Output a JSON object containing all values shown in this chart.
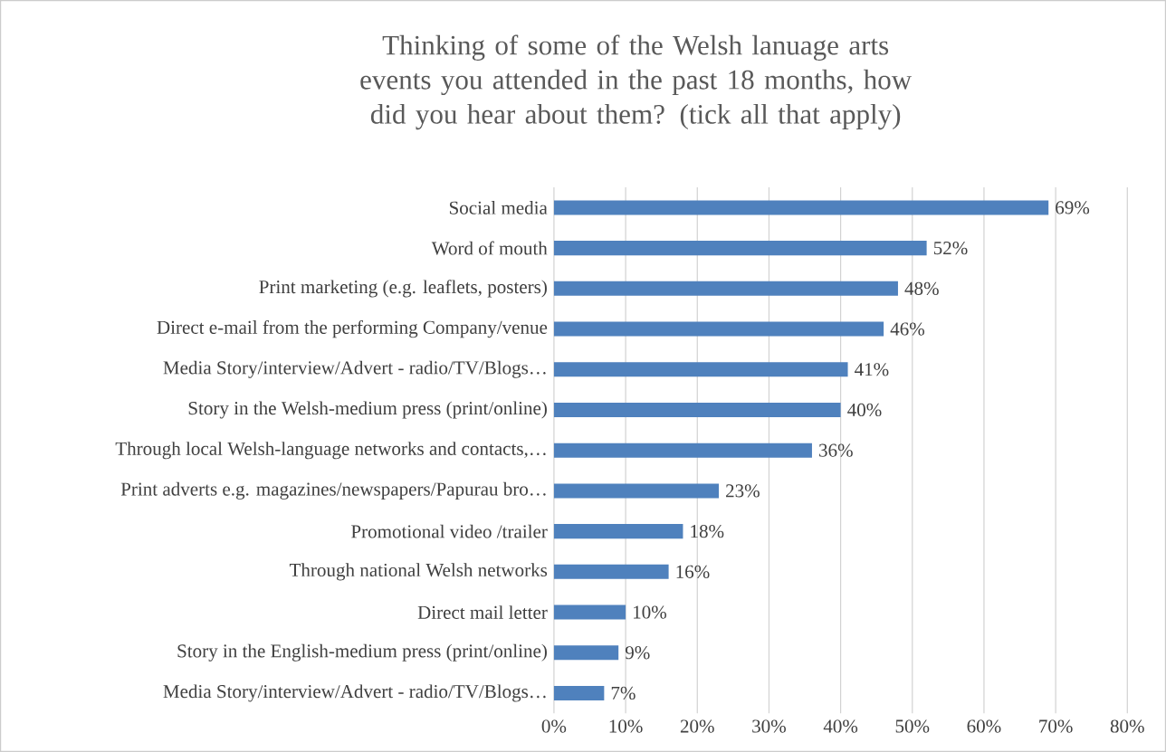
{
  "chart_data": {
    "type": "bar",
    "orientation": "horizontal",
    "title": "Thinking of some of the Welsh lanuage arts events you attended in the past 18 months, how did you hear about them? (tick all that apply)",
    "categories": [
      "Social media",
      "Word of mouth",
      "Print marketing (e.g. leaflets, posters)",
      "Direct e-mail from the performing Company/venue",
      "Media Story/interview/Advert - radio/TV/Blogs…",
      "Story in the Welsh-medium press (print/online)",
      "Through local Welsh-language networks and contacts,…",
      "Print adverts e.g. magazines/newspapers/Papurau bro…",
      "Promotional video /trailer",
      "Through national Welsh networks",
      "Direct mail letter",
      "Story in the English-medium press (print/online)",
      "Media Story/interview/Advert - radio/TV/Blogs…"
    ],
    "values": [
      69,
      52,
      48,
      46,
      41,
      40,
      36,
      23,
      18,
      16,
      10,
      9,
      7
    ],
    "value_labels": [
      "69%",
      "52%",
      "48%",
      "46%",
      "41%",
      "40%",
      "36%",
      "23%",
      "18%",
      "16%",
      "10%",
      "9%",
      "7%"
    ],
    "color": "#4f81bd",
    "xlim": [
      0,
      80
    ],
    "xticks": [
      {
        "value": 0,
        "label": "0%"
      },
      {
        "value": 10,
        "label": "10%"
      },
      {
        "value": 20,
        "label": "20%"
      },
      {
        "value": 30,
        "label": "30%"
      },
      {
        "value": 40,
        "label": "40%"
      },
      {
        "value": 50,
        "label": "50%"
      },
      {
        "value": 60,
        "label": "60%"
      },
      {
        "value": 70,
        "label": "70%"
      },
      {
        "value": 80,
        "label": "80%"
      }
    ],
    "grid": "x"
  }
}
